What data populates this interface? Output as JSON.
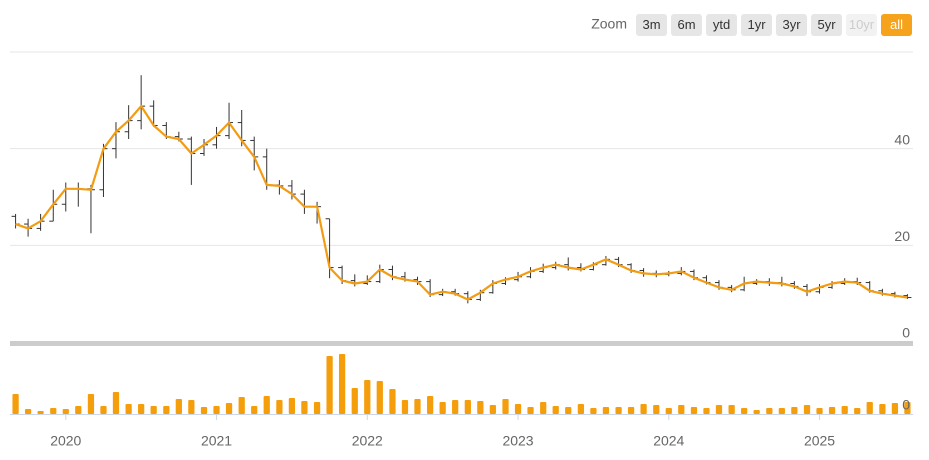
{
  "chart_data": {
    "type": "stock",
    "range_selector": {
      "label": "Zoom",
      "buttons": [
        "3m",
        "6m",
        "ytd",
        "1yr",
        "3yr",
        "5yr",
        "10yr",
        "all"
      ],
      "selected": 7,
      "disabled": [
        6
      ]
    },
    "x": [
      2019.667,
      2019.75,
      2019.833,
      2019.917,
      2020,
      2020.083,
      2020.167,
      2020.25,
      2020.333,
      2020.417,
      2020.5,
      2020.583,
      2020.667,
      2020.75,
      2020.833,
      2020.917,
      2021,
      2021.083,
      2021.167,
      2021.25,
      2021.333,
      2021.417,
      2021.5,
      2021.583,
      2021.667,
      2021.75,
      2021.833,
      2021.917,
      2022,
      2022.083,
      2022.167,
      2022.25,
      2022.333,
      2022.417,
      2022.5,
      2022.583,
      2022.667,
      2022.75,
      2022.833,
      2022.917,
      2023,
      2023.083,
      2023.167,
      2023.25,
      2023.333,
      2023.417,
      2023.5,
      2023.583,
      2023.667,
      2023.75,
      2023.833,
      2023.917,
      2024,
      2024.083,
      2024.167,
      2024.25,
      2024.333,
      2024.417,
      2024.5,
      2024.583,
      2024.667,
      2024.75,
      2024.833,
      2024.917,
      2025,
      2025.083,
      2025.167,
      2025.25,
      2025.333,
      2025.417,
      2025.5,
      2025.583
    ],
    "xlim": [
      2019.63,
      2025.62
    ],
    "xticks": [
      2020,
      2021,
      2022,
      2023,
      2024,
      2025
    ],
    "open": [
      26,
      24.4,
      23.5,
      25,
      28.5,
      31.7,
      31.7,
      31.5,
      40,
      43.5,
      45.8,
      48.8,
      44.8,
      42.5,
      42,
      39,
      40.8,
      42.7,
      45.4,
      41.7,
      38.3,
      32.5,
      32.3,
      30.6,
      28,
      25.5,
      15.4,
      12.7,
      12.1,
      12.5,
      15,
      13.5,
      12.9,
      12.5,
      9.8,
      10.4,
      10,
      8.8,
      10.2,
      12.1,
      12.9,
      13.5,
      14.6,
      15.4,
      16,
      15.4,
      15,
      16,
      17.1,
      16,
      14.8,
      14.2,
      14,
      14.2,
      14.6,
      13.3,
      12.3,
      11.3,
      10.8,
      12.1,
      12.5,
      12.3,
      12.1,
      11.5,
      10.4,
      11.3,
      12.1,
      12.5,
      12.3,
      10.6,
      10,
      9.6
    ],
    "high": [
      26.5,
      25.5,
      26.5,
      31.5,
      33,
      33,
      32.5,
      41,
      45.5,
      49,
      55.2,
      50,
      45.5,
      43.5,
      42.5,
      42,
      44.5,
      49.5,
      48,
      42.5,
      40,
      33.5,
      33.5,
      31.5,
      29,
      25.5,
      15.8,
      14,
      13.8,
      16,
      15.8,
      14.5,
      13.5,
      13,
      11,
      11,
      10.5,
      10.8,
      12.8,
      13.4,
      14.5,
      15.5,
      16.2,
      16.6,
      17.5,
      16.3,
      16.5,
      17.8,
      17.6,
      16.3,
      15.3,
      14.8,
      14.7,
      15.5,
      15,
      13.8,
      12.8,
      11.8,
      13.5,
      13,
      13.2,
      13.5,
      12.6,
      12,
      12,
      12.6,
      13.2,
      13.3,
      12.6,
      11,
      10.4,
      9.9
    ],
    "low": [
      23.5,
      21.8,
      23,
      25,
      27,
      28,
      22.5,
      30,
      38,
      42,
      44,
      44.5,
      42,
      41.5,
      32.5,
      38.5,
      40,
      42,
      40.5,
      35.5,
      31.5,
      30.5,
      29.5,
      26.5,
      24.5,
      13.2,
      12,
      11.5,
      11.8,
      12.2,
      12.8,
      12.5,
      11.8,
      9.3,
      9.5,
      9.6,
      8,
      8.5,
      10,
      11.8,
      12.5,
      13.2,
      14.3,
      15,
      14.8,
      14.6,
      14.8,
      15.8,
      15.5,
      14.3,
      13.5,
      13.4,
      13.6,
      13.8,
      12.8,
      11.9,
      10.8,
      10.3,
      10.5,
      11.8,
      11.6,
      11.5,
      11,
      9.5,
      10,
      11,
      11.8,
      11.8,
      10.2,
      9.6,
      9.2,
      8.9
    ],
    "close": [
      24.4,
      23.5,
      25,
      28.5,
      31.7,
      31.7,
      31.5,
      40,
      43.5,
      45.8,
      48.8,
      44.8,
      42.5,
      42,
      39,
      40.8,
      42.7,
      45.4,
      41.7,
      38.3,
      32.5,
      32.3,
      30.6,
      28,
      28,
      15.4,
      12.7,
      12.1,
      12.5,
      15,
      13.5,
      12.9,
      12.5,
      9.8,
      10.4,
      10,
      8.8,
      10.2,
      12.1,
      12.9,
      13.5,
      14.6,
      15.4,
      16,
      15.4,
      15,
      16,
      17.1,
      16,
      14.8,
      14.2,
      14,
      14.2,
      14.6,
      13.3,
      12.3,
      11.3,
      10.8,
      12.1,
      12.5,
      12.3,
      12.1,
      11.5,
      10.4,
      11.3,
      12.1,
      12.5,
      12.3,
      10.6,
      10,
      9.6,
      9.2
    ],
    "line_color": "#f39c12",
    "ohlc_color": "#333333",
    "ylim": [
      0,
      60
    ],
    "yticks": [
      0,
      20,
      40
    ],
    "grid": true,
    "volume": {
      "color": "#f59e0b",
      "ylim": [
        0,
        64
      ],
      "yticks": [
        0
      ],
      "values": [
        20,
        5,
        3,
        6,
        5,
        8,
        20,
        8,
        22,
        10,
        10,
        8,
        8,
        15,
        14,
        7,
        8,
        11,
        17,
        8,
        18,
        14,
        16,
        13,
        12,
        58,
        60,
        26,
        34,
        33,
        25,
        14,
        15,
        18,
        12,
        14,
        14,
        13,
        9,
        15,
        10,
        7,
        12,
        8,
        7,
        10,
        6,
        7,
        7,
        7,
        10,
        9,
        6,
        9,
        7,
        6,
        9,
        9,
        6,
        4,
        6,
        6,
        7,
        9,
        6,
        7,
        8,
        6,
        12,
        10,
        11,
        12
      ]
    }
  }
}
